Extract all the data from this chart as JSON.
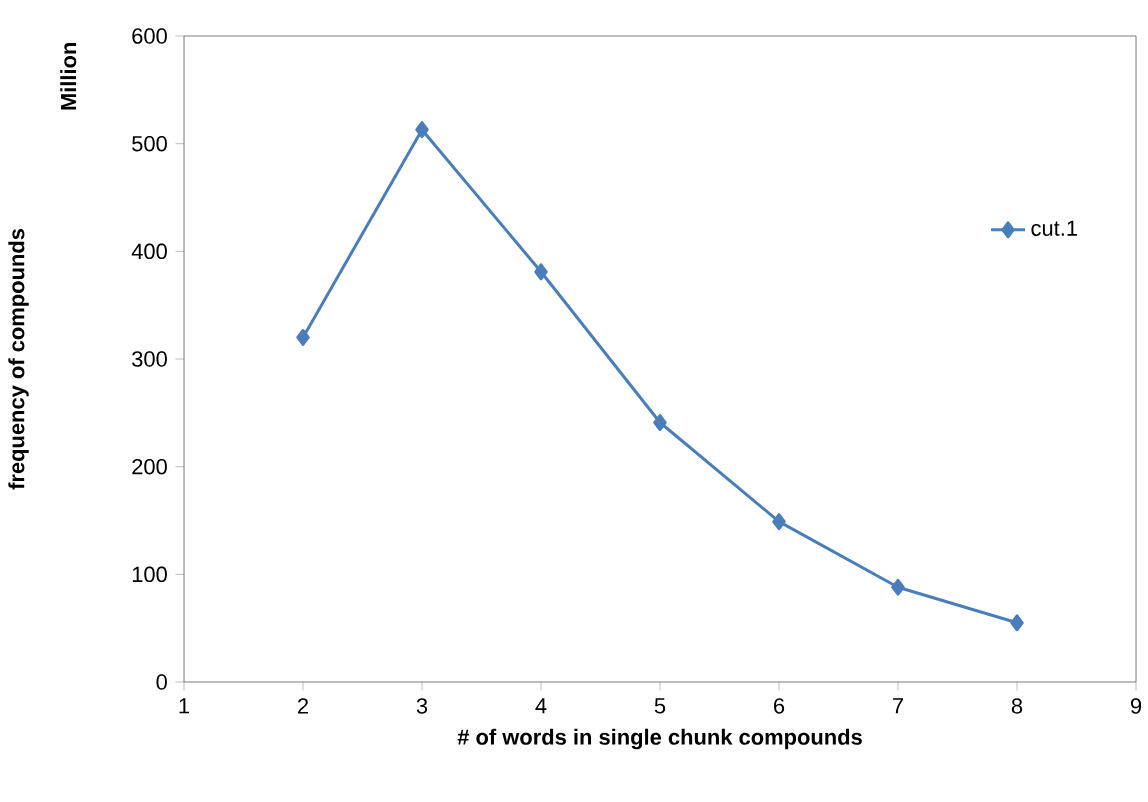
{
  "chart_data": {
    "type": "line",
    "xlabel": "# of words in single chunk compounds",
    "ylabel": "frequency of compounds",
    "annotations": [
      "Million"
    ],
    "x": [
      2,
      3,
      4,
      5,
      6,
      7,
      8
    ],
    "series": [
      {
        "name": "cut.1",
        "color": "#4a7ebb",
        "values": [
          320,
          513,
          381,
          241,
          149,
          88,
          55
        ]
      }
    ],
    "xlim": [
      1,
      9
    ],
    "xticks": [
      1,
      2,
      3,
      4,
      5,
      6,
      7,
      8,
      9
    ],
    "ylim": [
      0,
      600
    ],
    "yticks": [
      0,
      100,
      200,
      300,
      400,
      500,
      600
    ],
    "grid": false,
    "legend": "right",
    "marker": "diamond",
    "line_style": "solid"
  }
}
